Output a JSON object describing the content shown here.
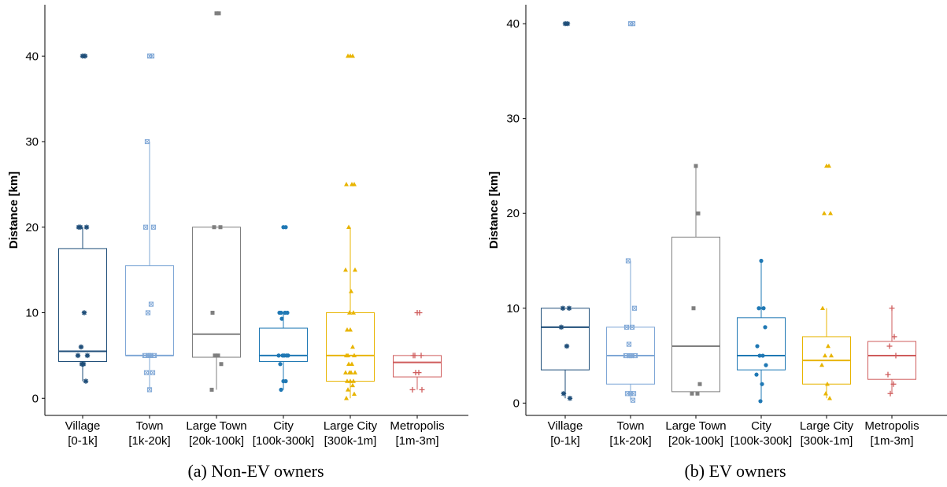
{
  "colors": {
    "village": "#1f4e79",
    "town": "#7fa7d6",
    "large_town": "#7f7f7f",
    "city": "#1f78b4",
    "large_city": "#e8b400",
    "metropolis": "#cf5c5c"
  },
  "chart_data": [
    {
      "type": "box",
      "caption": "(a) Non-EV owners",
      "ylabel": "Distance [km]",
      "xlabel": "",
      "ylim": [
        -2,
        46
      ],
      "yticks": [
        0,
        10,
        20,
        30,
        40
      ],
      "grid": false,
      "categories": [
        {
          "line1": "Village",
          "line2": "[0-1k]",
          "color_key": "village",
          "marker": "asterisk",
          "box": {
            "q1": 4.3,
            "median": 5.5,
            "q3": 17.5,
            "whisker_low": 2,
            "whisker_high": 20
          },
          "points": [
            40,
            40,
            20,
            20,
            20,
            10,
            6,
            5,
            5,
            4,
            4,
            2
          ]
        },
        {
          "line1": "Town",
          "line2": "[1k-20k]",
          "color_key": "town",
          "marker": "square-x",
          "box": {
            "q1": 5,
            "median": 5,
            "q3": 15.5,
            "whisker_low": 1,
            "whisker_high": 30
          },
          "points": [
            40,
            40,
            30,
            20,
            20,
            11,
            10,
            5,
            5,
            5,
            5,
            3,
            3,
            1
          ]
        },
        {
          "line1": "Large Town",
          "line2": "[20k-100k]",
          "color_key": "large_town",
          "marker": "square",
          "box": {
            "q1": 4.8,
            "median": 7.5,
            "q3": 20,
            "whisker_low": 1,
            "whisker_high": 20
          },
          "points": [
            45,
            45,
            20,
            20,
            10,
            5,
            5,
            4,
            1
          ]
        },
        {
          "line1": "City",
          "line2": "[100k-300k]",
          "color_key": "city",
          "marker": "circle",
          "box": {
            "q1": 4.3,
            "median": 5,
            "q3": 8.2,
            "whisker_low": 1,
            "whisker_high": 10
          },
          "points": [
            20,
            20,
            10,
            10,
            10,
            10,
            9.3,
            5,
            5,
            5,
            5,
            5,
            4,
            2,
            2,
            1
          ]
        },
        {
          "line1": "Large City",
          "line2": "[300k-1m]",
          "color_key": "large_city",
          "marker": "triangle",
          "box": {
            "q1": 2,
            "median": 5,
            "q3": 10,
            "whisker_low": 0,
            "whisker_high": 20
          },
          "points": [
            40,
            40,
            40,
            25,
            25,
            25,
            20,
            15,
            15,
            12.5,
            10,
            10,
            8,
            8,
            6,
            5,
            5,
            5,
            4,
            4,
            3,
            3,
            3,
            3,
            2,
            2,
            2,
            1.5,
            1,
            0.5,
            0
          ]
        },
        {
          "line1": "Metropolis",
          "line2": "[1m-3m]",
          "color_key": "metropolis",
          "marker": "plus",
          "box": {
            "q1": 2.5,
            "median": 4.2,
            "q3": 5,
            "whisker_low": 1,
            "whisker_high": 5
          },
          "points": [
            10,
            10,
            5,
            5,
            5,
            3,
            3,
            1,
            1
          ]
        }
      ]
    },
    {
      "type": "box",
      "caption": "(b) EV owners",
      "ylabel": "Distance [km]",
      "xlabel": "",
      "ylim": [
        -1.3,
        42
      ],
      "yticks": [
        0,
        10,
        20,
        30,
        40
      ],
      "grid": false,
      "categories": [
        {
          "line1": "Village",
          "line2": "[0-1k]",
          "color_key": "village",
          "marker": "asterisk",
          "box": {
            "q1": 3.5,
            "median": 8,
            "q3": 10,
            "whisker_low": 0.5,
            "whisker_high": 10
          },
          "points": [
            40,
            40,
            10,
            10,
            8,
            6,
            1,
            0.5
          ]
        },
        {
          "line1": "Town",
          "line2": "[1k-20k]",
          "color_key": "town",
          "marker": "square-x",
          "box": {
            "q1": 2,
            "median": 5,
            "q3": 8,
            "whisker_low": 0.3,
            "whisker_high": 15
          },
          "points": [
            40,
            40,
            15,
            10,
            8,
            8,
            6.2,
            5,
            5,
            5,
            5,
            1,
            1,
            1,
            0.3
          ]
        },
        {
          "line1": "Large Town",
          "line2": "[20k-100k]",
          "color_key": "large_town",
          "marker": "square",
          "box": {
            "q1": 1.2,
            "median": 6,
            "q3": 17.5,
            "whisker_low": 1,
            "whisker_high": 25
          },
          "points": [
            25,
            20,
            10,
            2,
            1,
            1
          ]
        },
        {
          "line1": "City",
          "line2": "[100k-300k]",
          "color_key": "city",
          "marker": "circle",
          "box": {
            "q1": 3.5,
            "median": 5,
            "q3": 9,
            "whisker_low": 0.2,
            "whisker_high": 15
          },
          "points": [
            15,
            10,
            10,
            8,
            6,
            5,
            5,
            4,
            3,
            2,
            0.2
          ]
        },
        {
          "line1": "Large City",
          "line2": "[300k-1m]",
          "color_key": "large_city",
          "marker": "triangle",
          "box": {
            "q1": 2,
            "median": 4.5,
            "q3": 7,
            "whisker_low": 0.5,
            "whisker_high": 10
          },
          "points": [
            25,
            25,
            20,
            20,
            10,
            6,
            5,
            5,
            4,
            2,
            1,
            0.5
          ]
        },
        {
          "line1": "Metropolis",
          "line2": "[1m-3m]",
          "color_key": "metropolis",
          "marker": "plus",
          "box": {
            "q1": 2.5,
            "median": 5,
            "q3": 6.5,
            "whisker_low": 1,
            "whisker_high": 10
          },
          "points": [
            10,
            7,
            6,
            5,
            3,
            2,
            1
          ]
        }
      ]
    }
  ]
}
